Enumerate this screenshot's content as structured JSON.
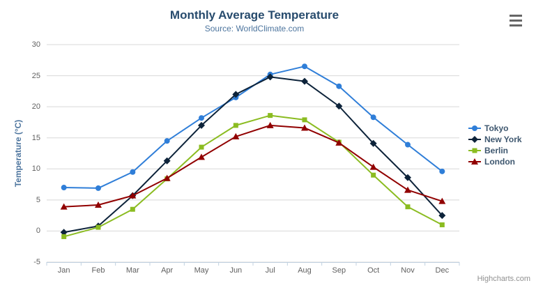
{
  "title": "Monthly Average Temperature",
  "subtitle": "Source: WorldClimate.com",
  "credit": "Highcharts.com",
  "icons": {
    "menu": "hamburger-icon"
  },
  "theme": {
    "title_color": "#274b6d",
    "subtitle_color": "#4d759e",
    "axis_label_color": "#606060",
    "axis_title_color": "#4d759e",
    "legend_text_color": "#3e576f",
    "gridline_color": "#d8d8d8",
    "xaxis_line_color": "#c0d0e0",
    "credit_color": "#909090"
  },
  "chart_data": {
    "type": "line",
    "title": "Monthly Average Temperature",
    "subtitle": "Source: WorldClimate.com",
    "xlabel": "",
    "ylabel": "Temperature (°C)",
    "ylim": [
      -5,
      30
    ],
    "yticks": [
      -5,
      0,
      5,
      10,
      15,
      20,
      25,
      30
    ],
    "grid": true,
    "legend_position": "right",
    "categories": [
      "Jan",
      "Feb",
      "Mar",
      "Apr",
      "May",
      "Jun",
      "Jul",
      "Aug",
      "Sep",
      "Oct",
      "Nov",
      "Dec"
    ],
    "series": [
      {
        "name": "Tokyo",
        "color": "#2f7ed8",
        "marker": "circle",
        "values": [
          7.0,
          6.9,
          9.5,
          14.5,
          18.2,
          21.5,
          25.2,
          26.5,
          23.3,
          18.3,
          13.9,
          9.6
        ]
      },
      {
        "name": "New York",
        "color": "#0d233a",
        "marker": "diamond",
        "values": [
          -0.2,
          0.8,
          5.7,
          11.3,
          17.0,
          22.0,
          24.8,
          24.1,
          20.1,
          14.1,
          8.6,
          2.5
        ]
      },
      {
        "name": "Berlin",
        "color": "#8bbc21",
        "marker": "square",
        "values": [
          -0.9,
          0.6,
          3.5,
          8.4,
          13.5,
          17.0,
          18.6,
          17.9,
          14.3,
          9.0,
          3.9,
          1.0
        ]
      },
      {
        "name": "London",
        "color": "#910000",
        "marker": "triangle",
        "values": [
          3.9,
          4.2,
          5.7,
          8.5,
          11.9,
          15.2,
          17.0,
          16.6,
          14.2,
          10.3,
          6.6,
          4.8
        ]
      }
    ]
  }
}
